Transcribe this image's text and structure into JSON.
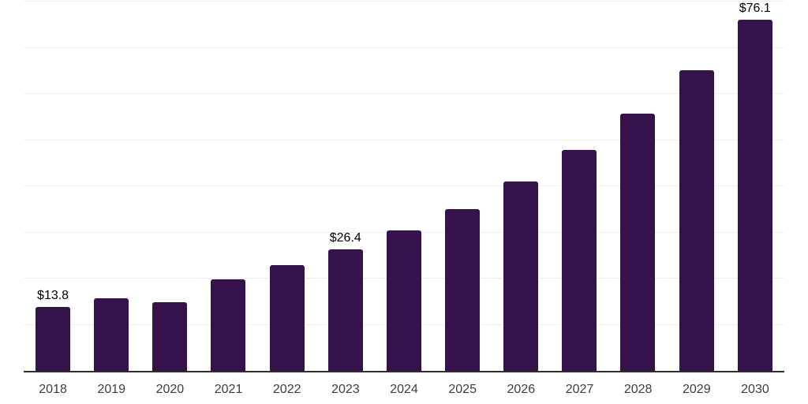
{
  "chart_data": {
    "type": "bar",
    "title": "",
    "xlabel": "",
    "ylabel": "",
    "categories": [
      "2018",
      "2019",
      "2020",
      "2021",
      "2022",
      "2023",
      "2024",
      "2025",
      "2026",
      "2027",
      "2028",
      "2029",
      "2030"
    ],
    "values": [
      13.8,
      15.8,
      14.8,
      19.8,
      22.9,
      26.4,
      30.4,
      35.1,
      41.0,
      47.8,
      55.8,
      65.1,
      76.1
    ],
    "value_labels": {
      "2018": "$13.8",
      "2023": "$26.4",
      "2030": "$76.1"
    },
    "ylim": [
      0,
      80
    ],
    "gridline_step": 10,
    "grid": "horizontal-only",
    "y_tick_labels_visible": false,
    "legend": "none",
    "colors": {
      "bar": "#35124B",
      "axis_line": "#2F2F2F",
      "gridline": "#EDEDED",
      "value_label": "#000000",
      "tick_label": "#3D3D3D",
      "background": "#FFFFFF"
    }
  }
}
